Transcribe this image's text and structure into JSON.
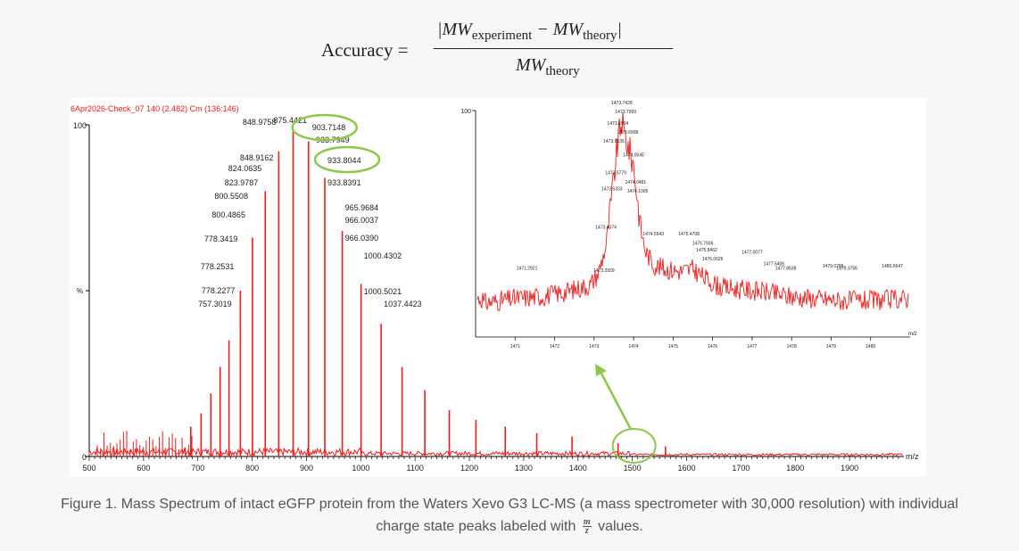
{
  "formula": {
    "lhs": "Accuracy =",
    "num_pre": "|MW",
    "num_sub": "experiment",
    "num_mid": " − MW",
    "num_sub2": "theory",
    "num_post": "|",
    "den": "MW",
    "den_sub": "theory"
  },
  "caption": {
    "text": "Figure 1. Mass Spectrum of intact eGFP protein from the Waters Xevo G3 LC-MS (a mass spectrometer with 30,000 resolution) with individual charge state peaks labeled with",
    "frac_num": "m",
    "frac_den": "z",
    "tail": "values."
  },
  "colors": {
    "trace": "#ee1c1c",
    "highlight": "#8cc84b",
    "axis": "#000000",
    "text": "#555555"
  },
  "chart_data": [
    {
      "type": "line",
      "header": "6Apr2026-Check_07 140 (2.482) Cm (136:146)",
      "xlabel": "m/z",
      "ylabel": "%",
      "xlim": [
        500,
        2000
      ],
      "ylim": [
        0,
        100
      ],
      "xticks": [
        500,
        600,
        700,
        800,
        900,
        1000,
        1100,
        1200,
        1300,
        1400,
        1500,
        1600,
        1700,
        1800,
        1900
      ],
      "yticks": [
        {
          "v": 0,
          "t": "0"
        },
        {
          "v": 100,
          "t": "100"
        }
      ],
      "peaks": [
        {
          "x": 687,
          "y": 9
        },
        {
          "x": 706,
          "y": 13
        },
        {
          "x": 724,
          "y": 19
        },
        {
          "x": 741,
          "y": 27
        },
        {
          "x": 757.3,
          "y": 35
        },
        {
          "x": 778.3,
          "y": 50
        },
        {
          "x": 800.6,
          "y": 66
        },
        {
          "x": 824.1,
          "y": 80
        },
        {
          "x": 848.9,
          "y": 92
        },
        {
          "x": 875.4,
          "y": 98
        },
        {
          "x": 903.7,
          "y": 95
        },
        {
          "x": 933.8,
          "y": 84
        },
        {
          "x": 966.0,
          "y": 68
        },
        {
          "x": 1000.5,
          "y": 52
        },
        {
          "x": 1037.4,
          "y": 40
        },
        {
          "x": 1076,
          "y": 27
        },
        {
          "x": 1118,
          "y": 20
        },
        {
          "x": 1163,
          "y": 14
        },
        {
          "x": 1212,
          "y": 11
        },
        {
          "x": 1266,
          "y": 9
        },
        {
          "x": 1324,
          "y": 7
        },
        {
          "x": 1389,
          "y": 6
        },
        {
          "x": 1473.7,
          "y": 4
        },
        {
          "x": 1561,
          "y": 3
        }
      ],
      "labels": [
        {
          "text": "875.4421",
          "x": 875.4
        },
        {
          "text": "848.9758",
          "x": 848.9
        },
        {
          "text": "903.7148",
          "x": 903.7
        },
        {
          "text": "933.7949",
          "x": 933.8
        },
        {
          "text": "933.8044",
          "x": 933.8
        },
        {
          "text": "848.9162",
          "x": 848.9
        },
        {
          "text": "824.0635",
          "x": 824.1
        },
        {
          "text": "823.9787",
          "x": 824.1
        },
        {
          "text": "933.8391",
          "x": 933.8
        },
        {
          "text": "800.5508",
          "x": 800.6
        },
        {
          "text": "965.9684",
          "x": 966.0
        },
        {
          "text": "800.4865",
          "x": 800.6
        },
        {
          "text": "966.0037",
          "x": 966.0
        },
        {
          "text": "778.3419",
          "x": 778.3
        },
        {
          "text": "966.0390",
          "x": 966.0
        },
        {
          "text": "1000.4302",
          "x": 1000.5
        },
        {
          "text": "778.2531",
          "x": 778.3
        },
        {
          "text": "778.2277",
          "x": 778.3
        },
        {
          "text": "1000.5021",
          "x": 1000.5
        },
        {
          "text": "757.3019",
          "x": 757.3
        },
        {
          "text": "1037.4423",
          "x": 1037.4
        }
      ]
    },
    {
      "type": "line",
      "xlabel": "m/z",
      "xlim": [
        1470,
        1481
      ],
      "ylim": [
        0,
        100
      ],
      "xticks": [
        1471,
        1472,
        1473,
        1474,
        1475,
        1476,
        1477,
        1478,
        1479,
        1480
      ],
      "yticks": [
        {
          "v": 100,
          "t": "100"
        }
      ],
      "profile": [
        [
          1470.2,
          15
        ],
        [
          1471.0,
          17
        ],
        [
          1471.7,
          18
        ],
        [
          1472.3,
          20
        ],
        [
          1472.9,
          23
        ],
        [
          1473.1,
          28
        ],
        [
          1473.3,
          40
        ],
        [
          1473.45,
          62
        ],
        [
          1473.55,
          78
        ],
        [
          1473.6,
          86
        ],
        [
          1473.7,
          96
        ],
        [
          1473.75,
          90
        ],
        [
          1473.8,
          88
        ],
        [
          1473.9,
          82
        ],
        [
          1474.0,
          76
        ],
        [
          1474.1,
          60
        ],
        [
          1474.2,
          46
        ],
        [
          1474.3,
          38
        ],
        [
          1474.5,
          32
        ],
        [
          1474.8,
          30
        ],
        [
          1475.2,
          29
        ],
        [
          1475.5,
          30
        ],
        [
          1475.8,
          26
        ],
        [
          1476.2,
          22
        ],
        [
          1476.7,
          21
        ],
        [
          1477.3,
          20
        ],
        [
          1477.9,
          18
        ],
        [
          1478.6,
          17
        ],
        [
          1479.3,
          16
        ],
        [
          1480.0,
          16
        ],
        [
          1480.9,
          17
        ]
      ],
      "labels": [
        {
          "text": "1473.7428",
          "x": 1473.7,
          "y": 102
        },
        {
          "text": "1473.7959",
          "x": 1473.8,
          "y": 98
        },
        {
          "text": "1473.6904",
          "x": 1473.6,
          "y": 93
        },
        {
          "text": "1473.6998",
          "x": 1473.85,
          "y": 89
        },
        {
          "text": "1473.6535",
          "x": 1473.5,
          "y": 85
        },
        {
          "text": "1474.0045",
          "x": 1474.0,
          "y": 79
        },
        {
          "text": "1473.5779",
          "x": 1473.55,
          "y": 71
        },
        {
          "text": "1474.0481",
          "x": 1474.05,
          "y": 67
        },
        {
          "text": "1473.5333",
          "x": 1473.45,
          "y": 64
        },
        {
          "text": "1474.1005",
          "x": 1474.1,
          "y": 63
        },
        {
          "text": "1473.4374",
          "x": 1473.3,
          "y": 47
        },
        {
          "text": "1474.5543",
          "x": 1474.5,
          "y": 44
        },
        {
          "text": "1475.4708",
          "x": 1475.4,
          "y": 44
        },
        {
          "text": "1475.7936",
          "x": 1475.75,
          "y": 40
        },
        {
          "text": "1475.8462",
          "x": 1475.85,
          "y": 37
        },
        {
          "text": "1477.0077",
          "x": 1477.0,
          "y": 36
        },
        {
          "text": "1476.0026",
          "x": 1476.0,
          "y": 33
        },
        {
          "text": "1471.2921",
          "x": 1471.3,
          "y": 29
        },
        {
          "text": "1473.2929",
          "x": 1473.25,
          "y": 28
        },
        {
          "text": "1477.5406",
          "x": 1477.55,
          "y": 31
        },
        {
          "text": "1477.8638",
          "x": 1477.85,
          "y": 29
        },
        {
          "text": "1479.0785",
          "x": 1479.05,
          "y": 30
        },
        {
          "text": "1479.3756",
          "x": 1479.4,
          "y": 29
        },
        {
          "text": "1480.5647",
          "x": 1480.55,
          "y": 30
        }
      ]
    }
  ]
}
